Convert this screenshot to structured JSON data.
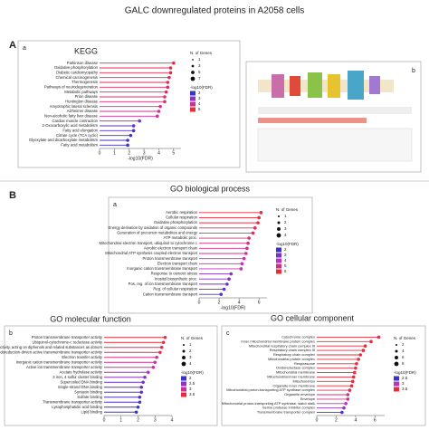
{
  "title": "GALC downregulated proteins in A2058 cells",
  "sections": [
    "A",
    "B"
  ],
  "pathway_diagram": {
    "panel": "b"
  },
  "chart_data": [
    {
      "type": "lollipop",
      "title": "KEGG",
      "panel": "a",
      "categories": [
        "Parkinson disease",
        "Oxidative phosphorylation",
        "Diabetic cardiomyopathy",
        "Chemical carcinogenesis",
        "Thermogenesis",
        "Pathways of neurodegeneration",
        "Metabolic pathways",
        "Prion disease",
        "Huntington disease",
        "Amyotrophic lateral sclerosis",
        "Alzheimer disease",
        "Non-alcoholic fatty liver disease",
        "Cardiac muscle contraction",
        "2-Oxocarboxylic acid metabolism",
        "Fatty acid elongation",
        "Citrate cycle (TCA cycle)",
        "Glyoxylate and dicarboxylate metabolism",
        "Fatty acid metabolism"
      ],
      "values": [
        5.0,
        4.8,
        4.8,
        4.7,
        4.6,
        4.6,
        4.5,
        4.4,
        4.4,
        4.1,
        4.0,
        3.9,
        2.7,
        2.3,
        2.3,
        2.1,
        1.9,
        1.9
      ],
      "xlim": [
        0,
        5.5
      ],
      "xticks": [
        0,
        1,
        2,
        3,
        4,
        5
      ],
      "xlabel": "-log10(FDR)",
      "size_legend": {
        "title": "N. of Genes",
        "values": [
          1,
          3,
          5,
          7
        ]
      },
      "color_legend": {
        "title": "-log10(FDR)",
        "values": [
          2,
          3,
          4,
          5
        ]
      }
    },
    {
      "type": "lollipop",
      "title": "GO biological process",
      "panel": "a",
      "categories": [
        "Aerobic respiration",
        "Cellular respiration",
        "Oxidative phosphorylation",
        "Energy derivation by oxidation of organic compounds",
        "Generation of precursor metabolites and energy",
        "ATP metabolic proc.",
        "Mitochondrial electron transport, ubiquinol to cytochrome c",
        "Aerobic electron transport chain",
        "Mitochondrial ATP synthesis coupled electron transport",
        "Proton transmembrane transport",
        "Electron transport chain",
        "Inorganic cation transmembrane transport",
        "Response to osmotic stress",
        "Inositol biosynthetic proc.",
        "Pos. reg. of ion transmembrane transport",
        "Reg. of cellular respiration",
        "Cation transmembrane transport"
      ],
      "values": [
        6.2,
        6.0,
        5.9,
        5.6,
        5.4,
        5.0,
        4.9,
        4.8,
        4.7,
        4.5,
        4.3,
        4.2,
        3.2,
        3.0,
        2.8,
        2.5,
        2.2
      ],
      "xlim": [
        0,
        6.8
      ],
      "xticks": [
        0,
        2,
        4,
        6
      ],
      "xlabel": "-log10(FDR)",
      "size_legend": {
        "title": "N. of Genes",
        "values": [
          1,
          2,
          3,
          4
        ]
      },
      "color_legend": {
        "title": "-log10(FDR)",
        "values": [
          2,
          3,
          4,
          5,
          6
        ]
      }
    },
    {
      "type": "lollipop",
      "title": "GO molecular function",
      "panel": "b",
      "categories": [
        "Proton transmembrane transporter activity",
        "Ubiquinol-cytochrome-c reductase activity",
        "Oxidoreductase activity, acting on diphenols and related substances as donors",
        "Oxidoreduction-driven active transmembrane transporter activity",
        "Electron transfer activity",
        "Inorganic cation transmembrane transporter activity",
        "Active ion transmembrane transporter activity",
        "Acetate hydrolase activity",
        "3 iron, 4 sulfur cluster binding",
        "Supercoiled DNA binding",
        "Single-strand DNA binding",
        "Syntaxin binding",
        "Sulfate binding",
        "Transmembrane transporter activity",
        "Lysophosphatidic acid binding",
        "Lipid binding"
      ],
      "values": [
        3.6,
        3.5,
        3.4,
        3.3,
        3.1,
        3.0,
        2.9,
        2.6,
        2.4,
        2.3,
        2.2,
        2.2,
        2.1,
        2.1,
        2.0,
        1.9
      ],
      "xlim": [
        0,
        4
      ],
      "xticks": [
        0,
        1,
        2,
        3,
        4
      ],
      "size_legend": {
        "title": "N. of Genes",
        "values": [
          1,
          2,
          3,
          4
        ]
      },
      "color_legend": {
        "title": "-log10(FDR)",
        "values": [
          2.0,
          2.5,
          3.0,
          3.5
        ]
      }
    },
    {
      "type": "lollipop",
      "title": "GO cellular component",
      "panel": "c",
      "categories": [
        "Cytochrome complex",
        "Inner mitochondrial membrane protein complex",
        "Mitochondrial respiratory chain complex III",
        "Respiratory chain complex III",
        "Respiratory chain complex",
        "Mitochondrial protein complex",
        "Respirasome",
        "Oxidoreductase complex",
        "Mitochondrial membrane",
        "Mitochondrial inner membrane",
        "Mitochondrion",
        "Organelle inner membrane",
        "Mitochondrial proton-transporting ATP synthase complex",
        "Organelle envelope",
        "Envelope",
        "Mitochondrial proton-transporting ATP synthase, stator stalk",
        "Serine protease inhibitor complex",
        "Transmembrane transporter complex"
      ],
      "values": [
        6.4,
        5.6,
        5.0,
        4.8,
        4.5,
        4.3,
        4.1,
        4.0,
        3.9,
        3.8,
        3.7,
        3.6,
        3.4,
        3.2,
        3.2,
        3.0,
        2.8,
        2.6
      ],
      "xlim": [
        0,
        7
      ],
      "xticks": [
        0,
        2,
        4,
        6
      ],
      "size_legend": {
        "title": "N. of Genes",
        "values": [
          2,
          4,
          6,
          8
        ]
      },
      "color_legend": {
        "title": "-log10(FDR)",
        "values": [
          2.5,
          3.0,
          3.5
        ]
      }
    }
  ]
}
